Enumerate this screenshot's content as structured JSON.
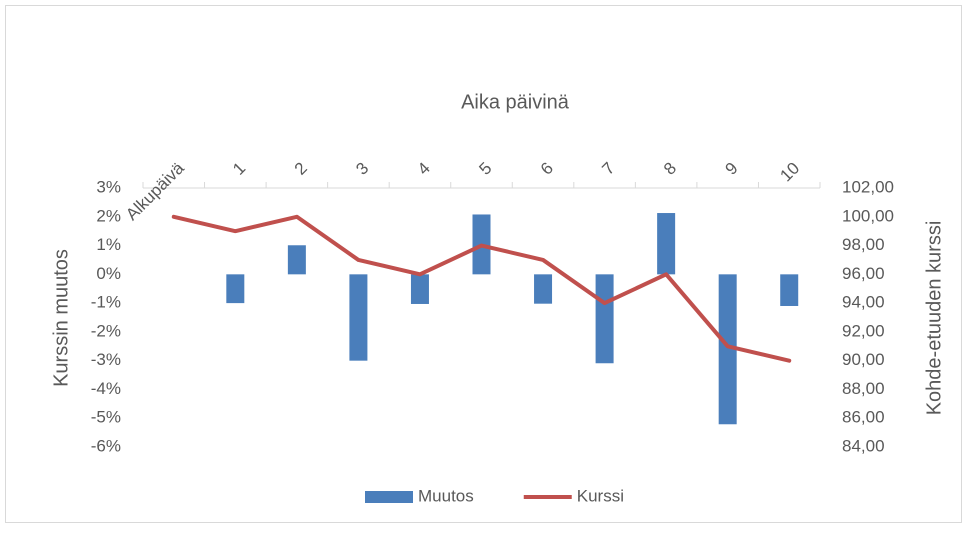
{
  "chart_data": {
    "type": "bar-line",
    "x_label": "Aika päivinä",
    "y_label": "Kurssin muutos",
    "y2_label": "Kohde-etuuden kurssi",
    "categories": [
      "Alkupäivä",
      "1",
      "2",
      "3",
      "4",
      "5",
      "6",
      "7",
      "8",
      "9",
      "10"
    ],
    "series": [
      {
        "name": "Muutos",
        "type": "bar",
        "color": "#4a7ebb",
        "values": [
          null,
          -1,
          1.01,
          -3,
          -1.03,
          2.08,
          -1.02,
          -3.09,
          2.13,
          -5.21,
          -1.1
        ]
      },
      {
        "name": "Kurssi",
        "type": "line",
        "axis": "y2",
        "color": "#c0504d",
        "values": [
          100,
          99,
          100,
          97,
          96,
          98,
          97,
          94,
          96,
          91,
          90
        ]
      }
    ],
    "ylim": [
      -6,
      3
    ],
    "yticks": [
      {
        "value": 3,
        "label": "3%"
      },
      {
        "value": 2,
        "label": "2%"
      },
      {
        "value": 1,
        "label": "1%"
      },
      {
        "value": 0,
        "label": "0%"
      },
      {
        "value": -1,
        "label": "-1%"
      },
      {
        "value": -2,
        "label": "-2%"
      },
      {
        "value": -3,
        "label": "-3%"
      },
      {
        "value": -4,
        "label": "-4%"
      },
      {
        "value": -5,
        "label": "-5%"
      },
      {
        "value": -6,
        "label": "-6%"
      }
    ],
    "y2lim": [
      84,
      102
    ],
    "y2ticks": [
      {
        "value": 102,
        "label": "102,00"
      },
      {
        "value": 100,
        "label": "100,00"
      },
      {
        "value": 98,
        "label": "98,00"
      },
      {
        "value": 96,
        "label": "96,00"
      },
      {
        "value": 94,
        "label": "94,00"
      },
      {
        "value": 92,
        "label": "92,00"
      },
      {
        "value": 90,
        "label": "90,00"
      },
      {
        "value": 88,
        "label": "88,00"
      },
      {
        "value": 86,
        "label": "86,00"
      },
      {
        "value": 84,
        "label": "84,00"
      }
    ],
    "legend": "bottom"
  }
}
